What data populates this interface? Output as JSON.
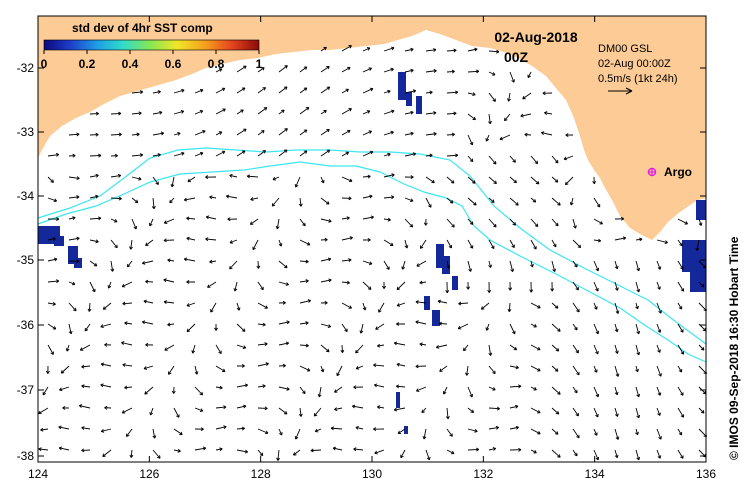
{
  "colorbar": {
    "title": "std dev of 4hr SST comp",
    "ticks": [
      "0",
      "0.2",
      "0.4",
      "0.6",
      "0.8",
      "1"
    ],
    "colors": [
      "#0a0a7a",
      "#1e3cc8",
      "#1ea0e6",
      "#32dcc8",
      "#8ce650",
      "#f0e628",
      "#f5a01e",
      "#e6461e",
      "#8c0a0a"
    ]
  },
  "date": {
    "line1": "02-Aug-2018",
    "line2": "00Z"
  },
  "model_info": {
    "line1": "DM00 GSL",
    "line2": "02-Aug 00:00Z",
    "line3": "0.5m/s (1kt 24h)"
  },
  "argo": {
    "label": "Argo",
    "color": "#e020e0"
  },
  "credit": "© IMOS 09-Sep-2018 16:30 Hobart Time",
  "x_axis": {
    "ticks": [
      "124",
      "126",
      "128",
      "130",
      "132",
      "134",
      "136"
    ]
  },
  "y_axis": {
    "ticks": [
      "-32",
      "-33",
      "-34",
      "-35",
      "-36",
      "-37",
      "-38"
    ]
  },
  "colors": {
    "land": "#fccb96",
    "ocean": "#ffffff",
    "isobath": "#3ce6f0",
    "arrow": "#000000",
    "sst_patch": "#14289a"
  }
}
